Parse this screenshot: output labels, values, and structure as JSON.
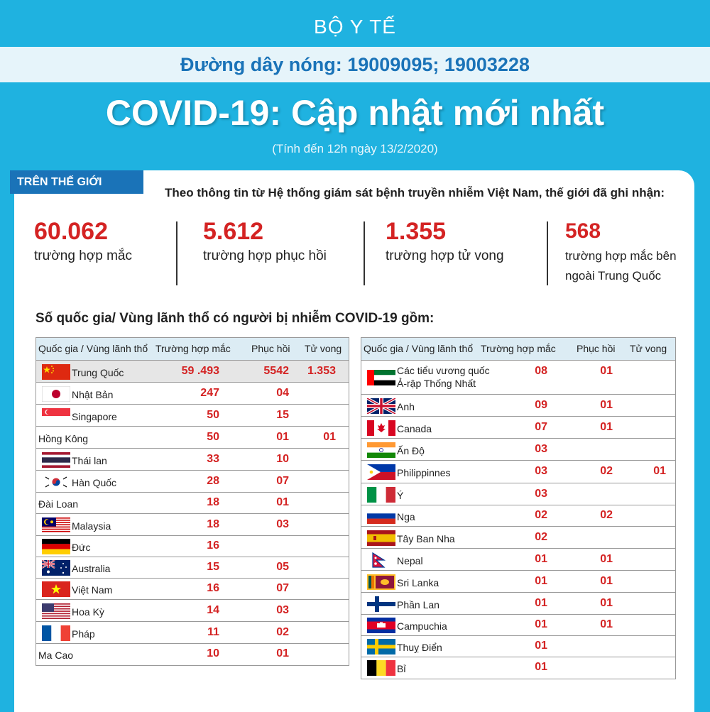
{
  "header": {
    "ministry": "BỘ Y TẾ",
    "hotline": "Đường dây nóng: 19009095; 19003228",
    "title": "COVID-19: Cập nhật mới nhất",
    "subtitle": "(Tính đến 12h ngày 13/2/2020)"
  },
  "section_tag": "TRÊN THẾ GIỚI",
  "intro": "Theo thông tin từ Hệ thống giám sát bệnh truyền nhiễm Việt Nam, thế giới đã ghi nhận:",
  "stats": [
    {
      "value": "60.062",
      "label": "trường hợp mắc"
    },
    {
      "value": "5.612",
      "label": "trường hợp phục hồi"
    },
    {
      "value": "1.355",
      "label": "trường hợp tử vong"
    },
    {
      "value": "568",
      "label_line1": "trường hợp mắc bên",
      "label_line2": "ngoài Trung Quốc"
    }
  ],
  "countries_title": "Số quốc gia/ Vùng lãnh thổ có người bị nhiễm COVID-19 gồm:",
  "table_headers": {
    "country": "Quốc gia / Vùng lãnh thổ",
    "cases": "Trường hợp mắc",
    "recovered": "Phục hồi",
    "deaths": "Tử vong"
  },
  "left_table": [
    {
      "name": "Trung Quốc",
      "cases": "59 .493",
      "recovered": "5542",
      "deaths": "1.353",
      "flag": "cn-flag"
    },
    {
      "name": "Nhật Bản",
      "cases": "247",
      "recovered": "04",
      "deaths": "",
      "flag": "jp-flag"
    },
    {
      "name": "Singapore",
      "cases": "50",
      "recovered": "15",
      "deaths": "",
      "flag": "sg-flag"
    },
    {
      "name": "Hồng Kông",
      "cases": "50",
      "recovered": "01",
      "deaths": "01",
      "flag": ""
    },
    {
      "name": "Thái lan",
      "cases": "33",
      "recovered": "10",
      "deaths": "",
      "flag": "th-flag"
    },
    {
      "name": "Hàn Quốc",
      "cases": "28",
      "recovered": "07",
      "deaths": "",
      "flag": "kr-flag"
    },
    {
      "name": "Đài Loan",
      "cases": "18",
      "recovered": "01",
      "deaths": "",
      "flag": ""
    },
    {
      "name": "Malaysia",
      "cases": "18",
      "recovered": "03",
      "deaths": "",
      "flag": "my-flag"
    },
    {
      "name": "Đức",
      "cases": "16",
      "recovered": "",
      "deaths": "",
      "flag": "de-flag"
    },
    {
      "name": "Australia",
      "cases": "15",
      "recovered": "05",
      "deaths": "",
      "flag": "au-flag"
    },
    {
      "name": "Việt Nam",
      "cases": "16",
      "recovered": "07",
      "deaths": "",
      "flag": "vn-flag"
    },
    {
      "name": "Hoa Kỳ",
      "cases": "14",
      "recovered": "03",
      "deaths": "",
      "flag": "us-flag"
    },
    {
      "name": "Pháp",
      "cases": "11",
      "recovered": "02",
      "deaths": "",
      "flag": "fr-flag"
    },
    {
      "name": "Ma Cao",
      "cases": "10",
      "recovered": "01",
      "deaths": "",
      "flag": ""
    }
  ],
  "right_table": [
    {
      "name": "Các tiểu vương quốc",
      "name2": "Ả-rập Thống Nhất",
      "cases": "08",
      "recovered": "01",
      "deaths": "",
      "flag": "ae-flag"
    },
    {
      "name": "Anh",
      "cases": "09",
      "recovered": "01",
      "deaths": "",
      "flag": "gb-flag"
    },
    {
      "name": "Canada",
      "cases": "07",
      "recovered": "01",
      "deaths": "",
      "flag": "ca-flag"
    },
    {
      "name": "Ấn Độ",
      "cases": "03",
      "recovered": "",
      "deaths": "",
      "flag": "in-flag"
    },
    {
      "name": "Philippinnes",
      "cases": "03",
      "recovered": "02",
      "deaths": "01",
      "flag": "ph-flag"
    },
    {
      "name": "Ý",
      "cases": "03",
      "recovered": "",
      "deaths": "",
      "flag": "it-flag"
    },
    {
      "name": "Nga",
      "cases": "02",
      "recovered": "02",
      "deaths": "",
      "flag": "ru-flag"
    },
    {
      "name": "Tây Ban Nha",
      "cases": "02",
      "recovered": "",
      "deaths": "",
      "flag": "es-flag"
    },
    {
      "name": "Nepal",
      "cases": "01",
      "recovered": "01",
      "deaths": "",
      "flag": "np-flag"
    },
    {
      "name": "Sri Lanka",
      "cases": "01",
      "recovered": "01",
      "deaths": "",
      "flag": "lk-flag"
    },
    {
      "name": "Phần Lan",
      "cases": "01",
      "recovered": "01",
      "deaths": "",
      "flag": "fi-flag"
    },
    {
      "name": "Campuchia",
      "cases": "01",
      "recovered": "01",
      "deaths": "",
      "flag": "kh-flag"
    },
    {
      "name": "Thuỵ Điển",
      "cases": "01",
      "recovered": "",
      "deaths": "",
      "flag": "se-flag"
    },
    {
      "name": "Bỉ",
      "cases": "01",
      "recovered": "",
      "deaths": "",
      "flag": "be-flag"
    }
  ],
  "colors": {
    "background": "#1fb2e0",
    "accent_blue": "#1a73b8",
    "value_red": "#d42323"
  }
}
